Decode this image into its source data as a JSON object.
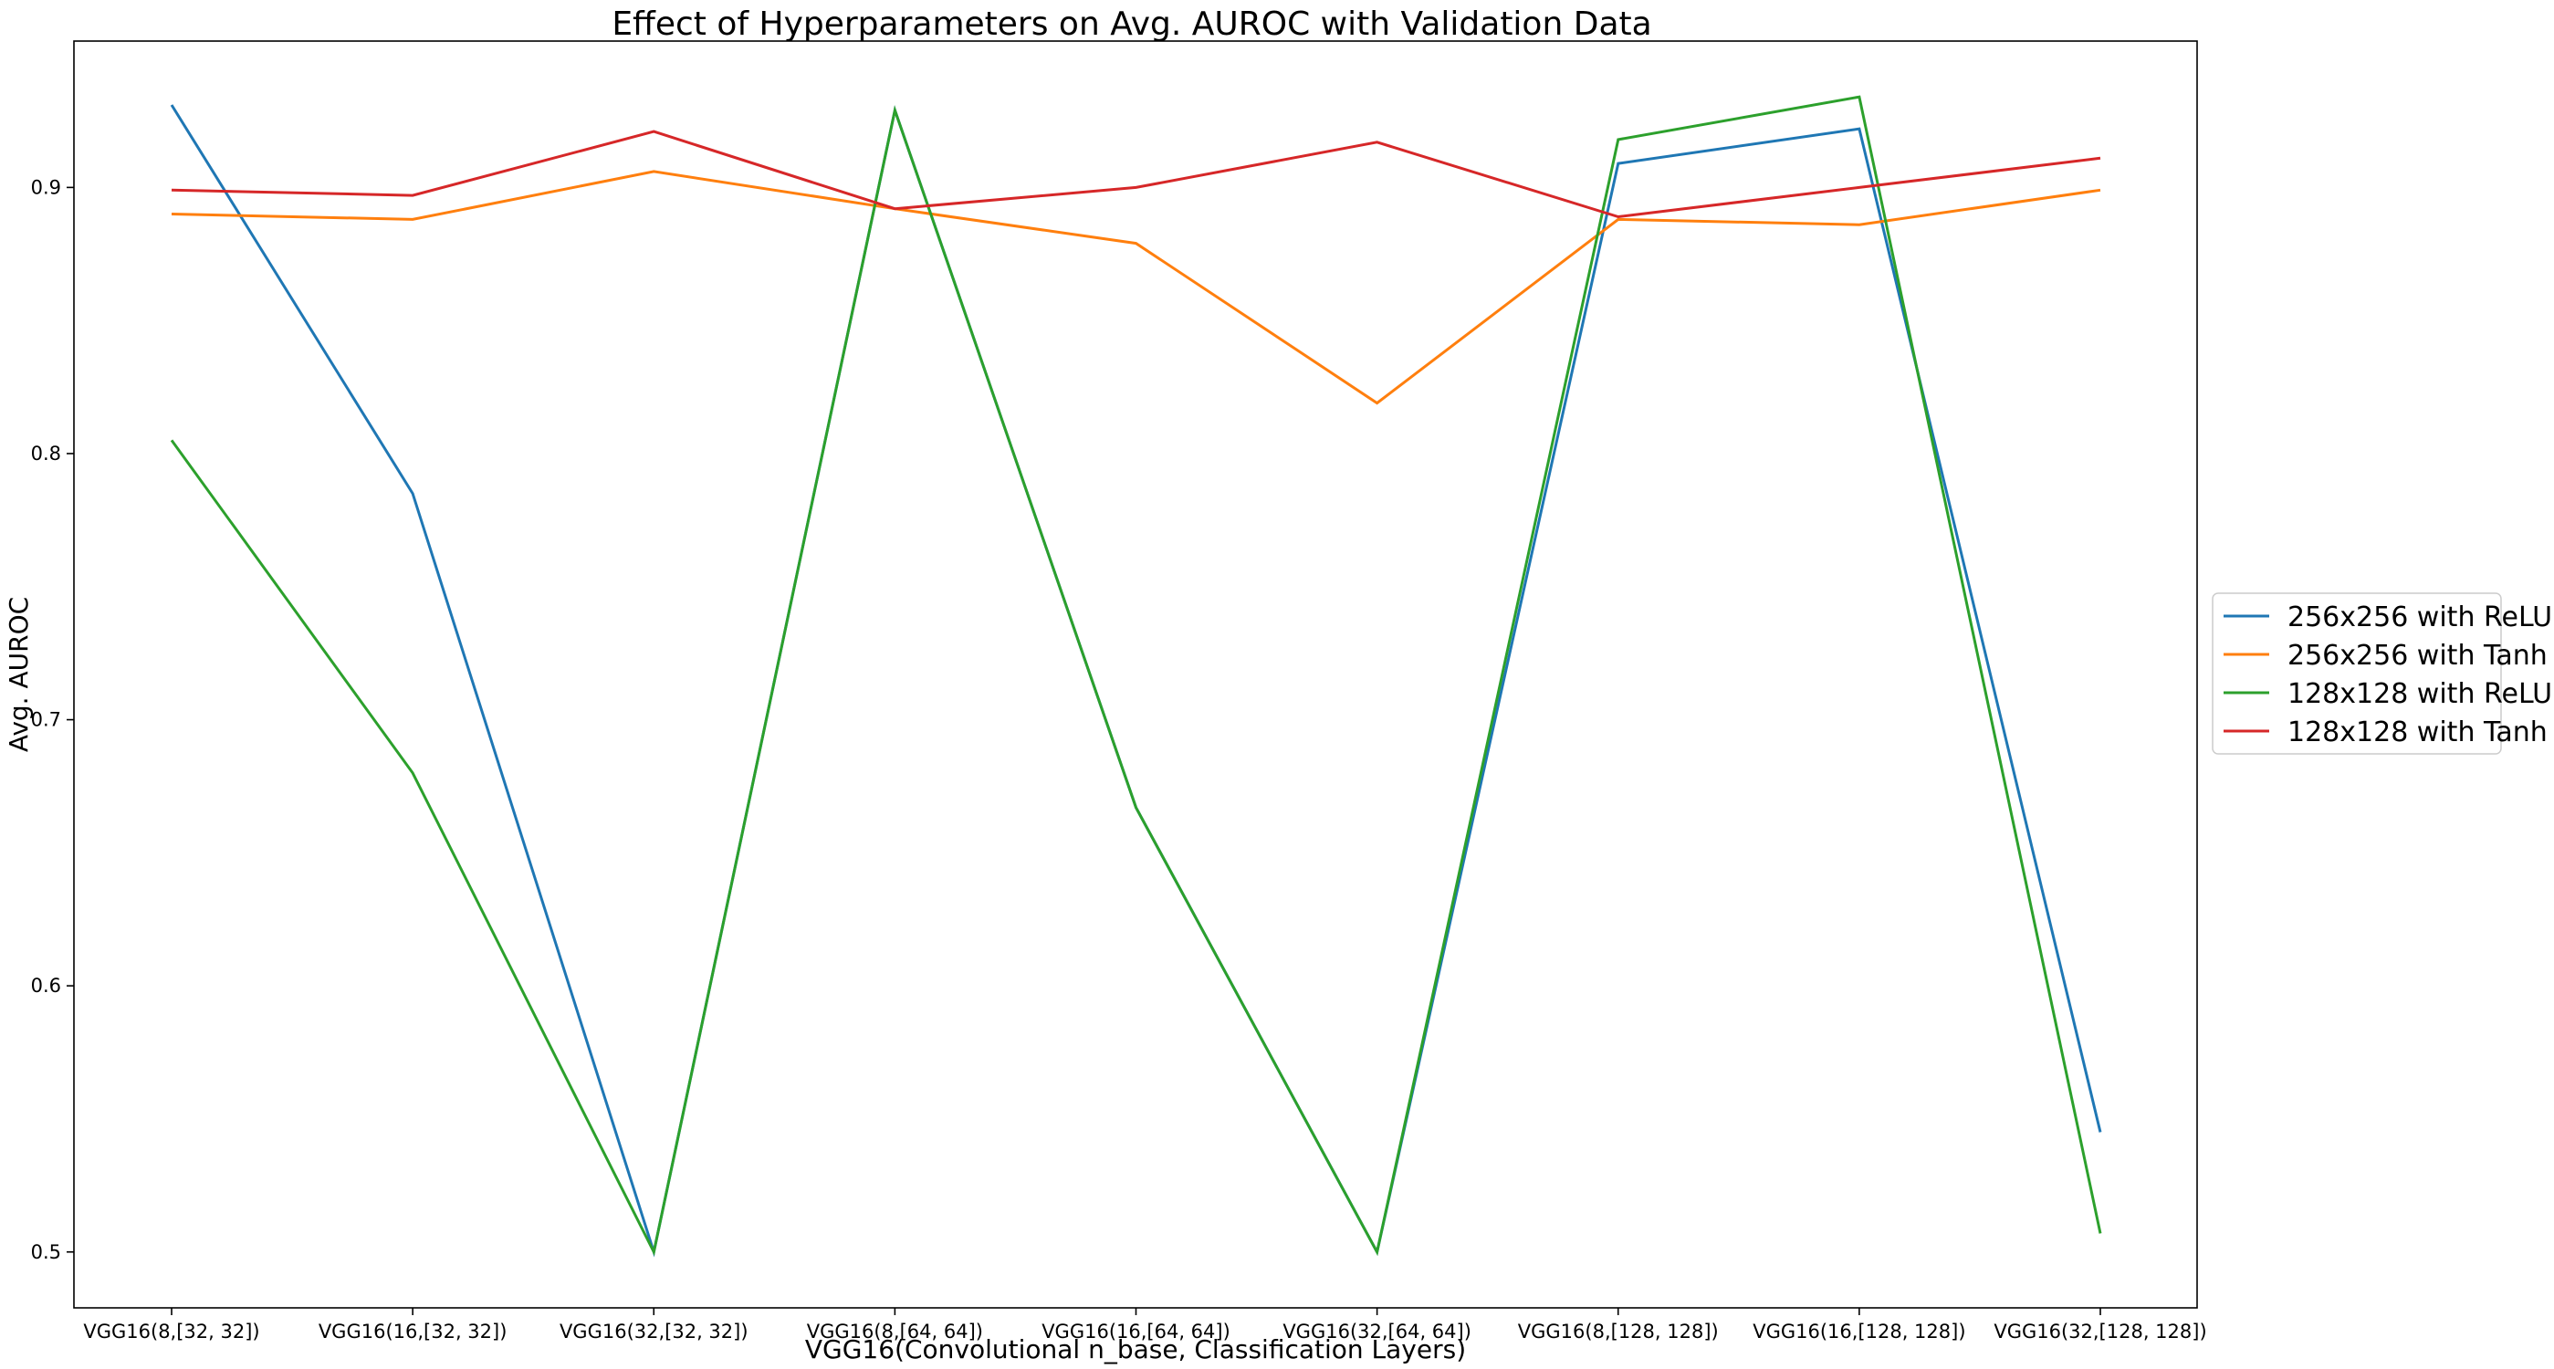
{
  "chart_data": {
    "type": "line",
    "title": "Effect of Hyperparameters on Avg. AUROC with Validation Data",
    "xlabel": "VGG16(Convolutional n_base, Classification Layers)",
    "ylabel": "Avg. AUROC",
    "categories": [
      "VGG16(8,[32, 32])",
      "VGG16(16,[32, 32])",
      "VGG16(32,[32, 32])",
      "VGG16(8,[64, 64])",
      "VGG16(16,[64, 64])",
      "VGG16(32,[64, 64])",
      "VGG16(8,[128, 128])",
      "VGG16(16,[128, 128])",
      "VGG16(32,[128, 128])"
    ],
    "yticks": [
      0.5,
      0.6,
      0.7,
      0.8,
      0.9
    ],
    "ytick_labels": [
      "0.5",
      "0.6",
      "0.7",
      "0.8",
      "0.9"
    ],
    "ylim": [
      0.479,
      0.955
    ],
    "grid": false,
    "legend_position": "right, outside plot",
    "series": [
      {
        "name": "256x256 with ReLU",
        "color": "#1f77b4",
        "values": [
          0.931,
          0.785,
          0.5,
          0.929,
          0.667,
          0.5,
          0.909,
          0.922,
          0.545
        ]
      },
      {
        "name": "256x256 with Tanh",
        "color": "#ff7f0e",
        "values": [
          0.89,
          0.888,
          0.906,
          0.892,
          0.879,
          0.819,
          0.888,
          0.886,
          0.899
        ]
      },
      {
        "name": "128x128 with ReLU",
        "color": "#2ca02c",
        "values": [
          0.805,
          0.68,
          0.5,
          0.929,
          0.667,
          0.5,
          0.918,
          0.934,
          0.507
        ]
      },
      {
        "name": "128x128 with Tanh",
        "color": "#d62728",
        "values": [
          0.899,
          0.897,
          0.921,
          0.892,
          0.9,
          0.917,
          0.889,
          0.9,
          0.911
        ]
      }
    ]
  }
}
